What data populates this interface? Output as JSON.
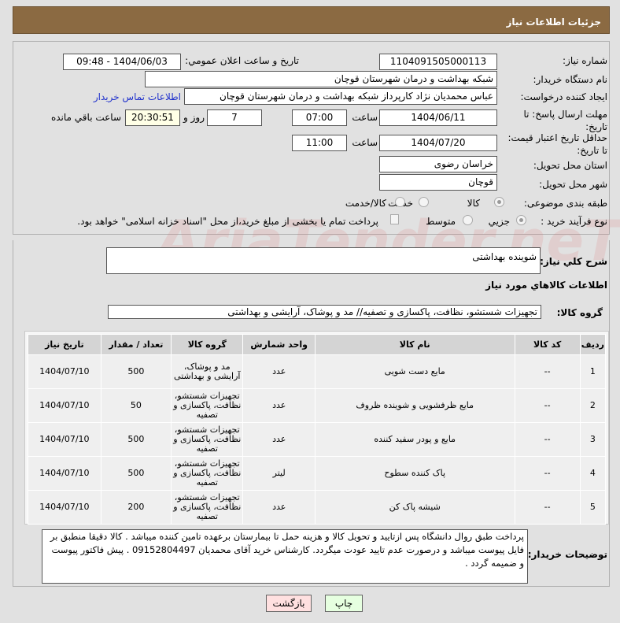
{
  "header": {
    "title": "جزئیات اطلاعات نیاز"
  },
  "form": {
    "need_number_label": "شماره نیاز:",
    "need_number": "1104091505000113",
    "announce_label": "تاریخ و ساعت اعلان عمومي:",
    "announce_value": "1404/06/03 - 09:48",
    "buyer_org_label": "نام دستگاه خریدار:",
    "buyer_org": "شبکه بهداشت و درمان شهرستان قوچان",
    "creator_label": "ایجاد کننده درخواست:",
    "creator": "عباس محمدیان نژاد کارپرداز شبکه بهداشت و درمان شهرستان قوچان",
    "contact_link": "اطلاعات تماس خریدار",
    "reply_deadline_label": "مهلت ارسال پاسخ: تا تاریخ:",
    "reply_date": "1404/06/11",
    "time_label": "ساعت",
    "reply_time": "07:00",
    "days": "7",
    "days_label": "روز و",
    "remaining": "20:30:51",
    "remaining_label": "ساعت باقي مانده",
    "validity_label": "حداقل تاریخ اعتبار قیمت: تا تاریخ:",
    "validity_date": "1404/07/20",
    "validity_time": "11:00",
    "province_label": "استان محل تحویل:",
    "province": "خراسان رضوی",
    "city_label": "شهر محل تحویل:",
    "city": "قوچان",
    "category_label": "طبقه بندی موضوعی:",
    "category_options": [
      "کالا",
      "خدمت",
      "کالا/خدمت"
    ],
    "category_selected": "کالا",
    "process_label": "نوع فرآیند خرید :",
    "process_options": [
      "جزیي",
      "متوسط"
    ],
    "process_selected": "جزیي",
    "treasury_note": "پرداخت تمام یا بخشی از مبلغ خرید،از محل \"اسناد خزانه اسلامی\" خواهد بود."
  },
  "description": {
    "label": "شرح کلي نیاز:",
    "value": "شوینده بهداشتی"
  },
  "goods": {
    "section_title": "اطلاعات کالاهاي مورد نیاز",
    "group_label": "گروه کالا:",
    "group_value": "تجهیزات شستشو، نظافت، پاکسازی و تصفیه// مد و پوشاک، آرایشی و بهداشتی",
    "columns": [
      "ردیف",
      "کد کالا",
      "نام کالا",
      "واحد شمارش",
      "گروه کالا",
      "تعداد / مقدار",
      "تاریخ نیاز"
    ],
    "rows": [
      [
        "1",
        "--",
        "مایع دست شویی",
        "عدد",
        "مد و پوشاک، آرایشی و بهداشتی",
        "500",
        "1404/07/10"
      ],
      [
        "2",
        "--",
        "مایع ظرفشویی و شوینده ظروف",
        "عدد",
        "تجهیزات شستشو، نظافت، پاکسازی و تصفیه",
        "50",
        "1404/07/10"
      ],
      [
        "3",
        "--",
        "مایع و پودر سفید کننده",
        "عدد",
        "تجهیزات شستشو، نظافت، پاکسازی و تصفیه",
        "500",
        "1404/07/10"
      ],
      [
        "4",
        "--",
        "پاک کننده سطوح",
        "لیتر",
        "تجهیزات شستشو، نظافت، پاکسازی و تصفیه",
        "500",
        "1404/07/10"
      ],
      [
        "5",
        "--",
        "شیشه پاک کن",
        "عدد",
        "تجهیزات شستشو، نظافت، پاکسازی و تصفیه",
        "200",
        "1404/07/10"
      ]
    ]
  },
  "buyer_notes": {
    "label": "توضیحات خریدار:",
    "value": "پرداخت طبق روال دانشگاه پس ازتایید و تحویل کالا  و هزینه حمل تا بیمارستان برعهده تامین کننده میباشد . کالا دقیقا منطبق بر فایل پیوست میباشد و درصورت عدم تایید عودت میگردد. کارشناس خرید آقای محمدیان 09152804497 . پیش فاکتور پیوست و ضمیمه گردد ."
  },
  "buttons": {
    "print": "چاپ",
    "back": "بازگشت"
  },
  "watermark": "AriaTender.neT",
  "colors": {
    "header": "#8b6a42",
    "print_btn": "#e6ffe0",
    "back_btn": "#ffe0e0",
    "link": "#2233cc"
  }
}
